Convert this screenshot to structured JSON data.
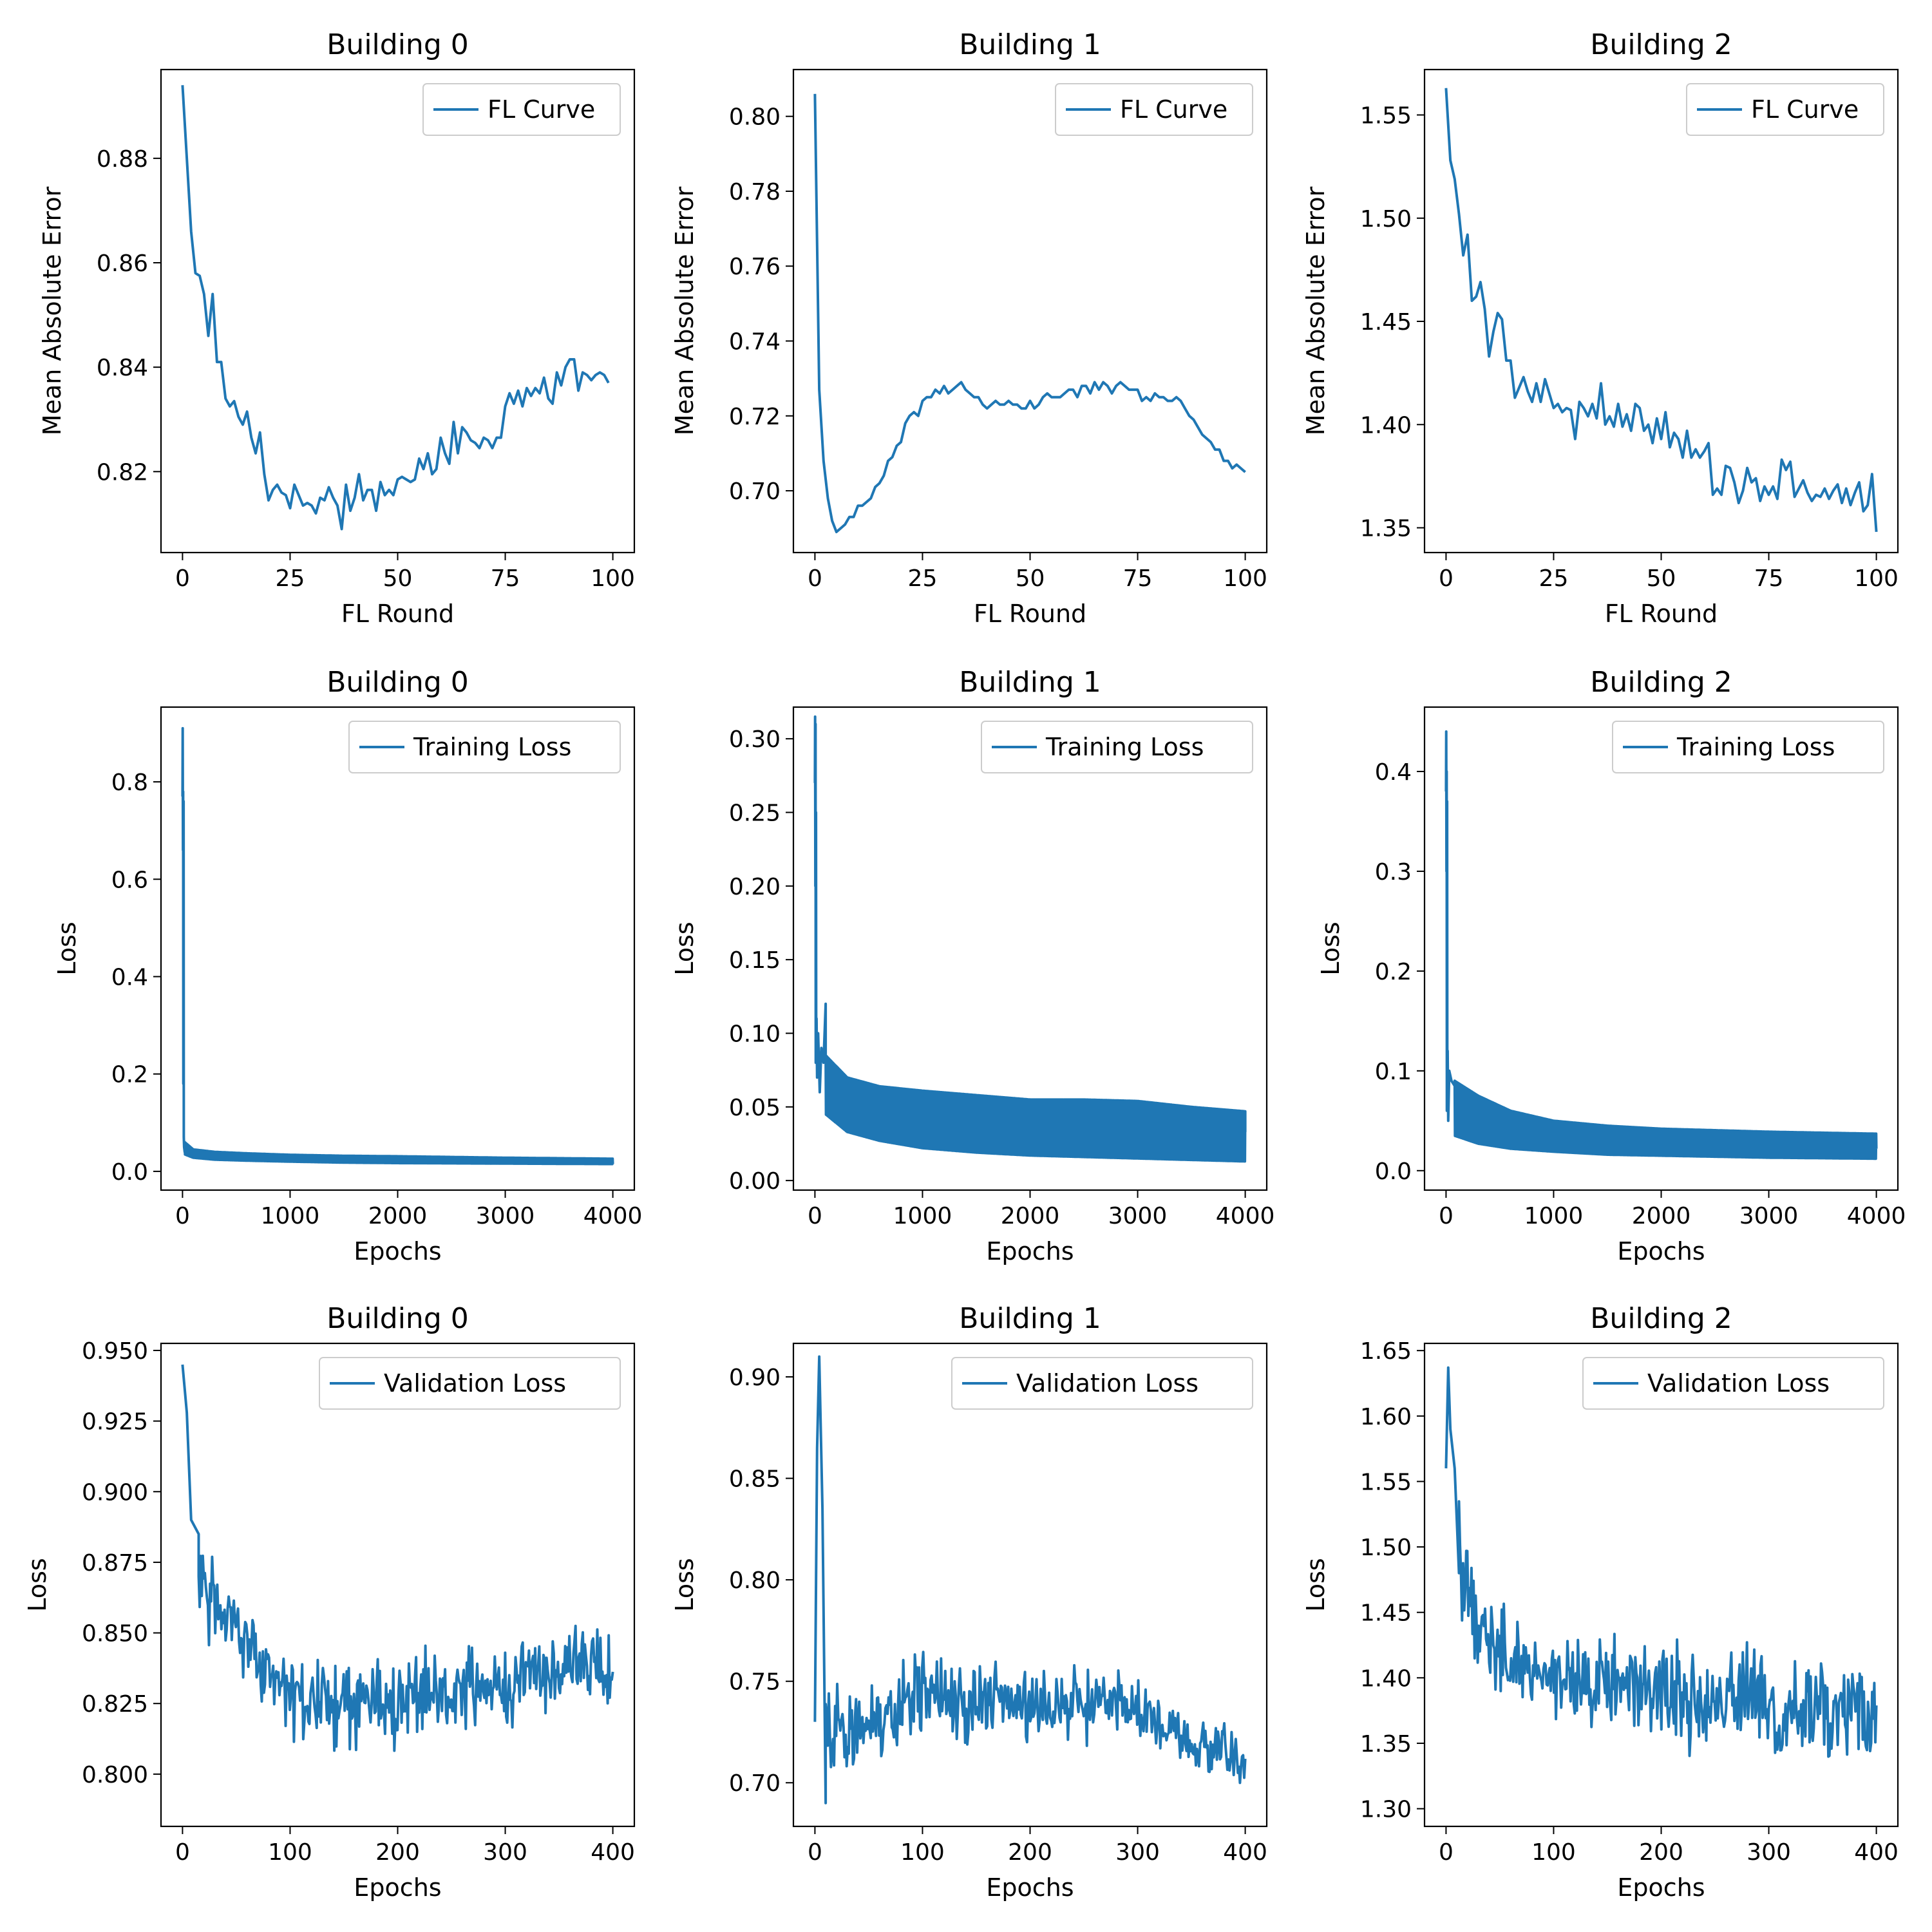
{
  "figure_title": "",
  "chart_data": [
    {
      "type": "line",
      "title": "Building 0",
      "xlabel": "FL Round",
      "ylabel": "Mean Absolute Error",
      "xlim": [
        -5,
        105
      ],
      "ylim": [
        0.8045,
        0.897
      ],
      "xticks": [
        0,
        25,
        50,
        75,
        100
      ],
      "yticks": [
        0.82,
        0.84,
        0.86,
        0.88
      ],
      "ytick_labels": [
        "0.82",
        "0.84",
        "0.86",
        "0.88"
      ],
      "legend": "top-right",
      "series": [
        {
          "name": "FL Curve",
          "color": "#1f77b4",
          "kind": "explicit",
          "x_start": 0,
          "x_step": 1,
          "values": [
            0.894,
            0.88,
            0.866,
            0.858,
            0.8575,
            0.854,
            0.846,
            0.854,
            0.841,
            0.841,
            0.834,
            0.8325,
            0.8335,
            0.8305,
            0.829,
            0.8315,
            0.8265,
            0.8235,
            0.8275,
            0.8195,
            0.8145,
            0.8165,
            0.8175,
            0.816,
            0.8155,
            0.813,
            0.8175,
            0.8155,
            0.8135,
            0.814,
            0.8135,
            0.812,
            0.815,
            0.8145,
            0.817,
            0.815,
            0.8135,
            0.809,
            0.8175,
            0.8125,
            0.815,
            0.8195,
            0.8145,
            0.8165,
            0.8165,
            0.8125,
            0.818,
            0.8155,
            0.8165,
            0.8155,
            0.8185,
            0.819,
            0.8185,
            0.818,
            0.8185,
            0.8225,
            0.8205,
            0.8235,
            0.8195,
            0.8205,
            0.8265,
            0.8235,
            0.8215,
            0.8295,
            0.8235,
            0.8285,
            0.8275,
            0.826,
            0.8255,
            0.8245,
            0.8265,
            0.826,
            0.8245,
            0.8265,
            0.8265,
            0.8325,
            0.835,
            0.833,
            0.8355,
            0.8325,
            0.836,
            0.8345,
            0.836,
            0.835,
            0.838,
            0.834,
            0.833,
            0.839,
            0.8365,
            0.84,
            0.8415,
            0.8415,
            0.8355,
            0.839,
            0.8385,
            0.8375,
            0.8385,
            0.839,
            0.8385,
            0.837
          ]
        }
      ]
    },
    {
      "type": "line",
      "title": "Building 1",
      "xlabel": "FL Round",
      "ylabel": "Mean Absolute Error",
      "xlim": [
        -5,
        105
      ],
      "ylim": [
        0.6835,
        0.8125
      ],
      "xticks": [
        0,
        25,
        50,
        75,
        100
      ],
      "yticks": [
        0.7,
        0.72,
        0.74,
        0.76,
        0.78,
        0.8
      ],
      "ytick_labels": [
        "0.70",
        "0.72",
        "0.74",
        "0.76",
        "0.78",
        "0.80"
      ],
      "legend": "top-right",
      "series": [
        {
          "name": "FL Curve",
          "color": "#1f77b4",
          "kind": "explicit",
          "x_start": 0,
          "x_step": 1,
          "values": [
            0.806,
            0.727,
            0.708,
            0.698,
            0.692,
            0.689,
            0.69,
            0.691,
            0.693,
            0.693,
            0.696,
            0.696,
            0.697,
            0.698,
            0.701,
            0.702,
            0.704,
            0.708,
            0.709,
            0.712,
            0.713,
            0.718,
            0.72,
            0.721,
            0.72,
            0.724,
            0.725,
            0.725,
            0.727,
            0.726,
            0.728,
            0.726,
            0.727,
            0.728,
            0.729,
            0.727,
            0.726,
            0.725,
            0.725,
            0.723,
            0.722,
            0.723,
            0.724,
            0.723,
            0.723,
            0.724,
            0.723,
            0.723,
            0.722,
            0.722,
            0.724,
            0.722,
            0.723,
            0.725,
            0.726,
            0.725,
            0.725,
            0.725,
            0.726,
            0.727,
            0.727,
            0.725,
            0.728,
            0.728,
            0.726,
            0.729,
            0.727,
            0.729,
            0.728,
            0.726,
            0.728,
            0.729,
            0.728,
            0.727,
            0.727,
            0.727,
            0.724,
            0.725,
            0.724,
            0.726,
            0.725,
            0.725,
            0.724,
            0.724,
            0.725,
            0.724,
            0.722,
            0.72,
            0.719,
            0.717,
            0.715,
            0.714,
            0.713,
            0.711,
            0.711,
            0.708,
            0.708,
            0.706,
            0.707,
            0.706,
            0.705
          ]
        }
      ]
    },
    {
      "type": "line",
      "title": "Building 2",
      "xlabel": "FL Round",
      "ylabel": "Mean Absolute Error",
      "xlim": [
        -5,
        105
      ],
      "ylim": [
        1.338,
        1.572
      ],
      "xticks": [
        0,
        25,
        50,
        75,
        100
      ],
      "yticks": [
        1.35,
        1.4,
        1.45,
        1.5,
        1.55
      ],
      "ytick_labels": [
        "1.35",
        "1.40",
        "1.45",
        "1.50",
        "1.55"
      ],
      "legend": "top-right",
      "series": [
        {
          "name": "FL Curve",
          "color": "#1f77b4",
          "kind": "explicit",
          "x_start": 0,
          "x_step": 1,
          "values": [
            1.563,
            1.528,
            1.519,
            1.502,
            1.482,
            1.492,
            1.46,
            1.462,
            1.469,
            1.456,
            1.433,
            1.445,
            1.454,
            1.451,
            1.431,
            1.431,
            1.413,
            1.418,
            1.423,
            1.416,
            1.411,
            1.42,
            1.411,
            1.422,
            1.415,
            1.408,
            1.41,
            1.406,
            1.408,
            1.407,
            1.393,
            1.411,
            1.408,
            1.404,
            1.41,
            1.403,
            1.42,
            1.4,
            1.404,
            1.399,
            1.41,
            1.399,
            1.405,
            1.397,
            1.41,
            1.408,
            1.397,
            1.4,
            1.391,
            1.403,
            1.393,
            1.406,
            1.389,
            1.396,
            1.393,
            1.384,
            1.397,
            1.384,
            1.388,
            1.384,
            1.387,
            1.391,
            1.366,
            1.369,
            1.366,
            1.38,
            1.379,
            1.372,
            1.362,
            1.368,
            1.379,
            1.372,
            1.374,
            1.363,
            1.37,
            1.366,
            1.37,
            1.364,
            1.383,
            1.378,
            1.382,
            1.365,
            1.369,
            1.373,
            1.367,
            1.363,
            1.366,
            1.365,
            1.369,
            1.364,
            1.368,
            1.371,
            1.362,
            1.369,
            1.361,
            1.367,
            1.372,
            1.358,
            1.361,
            1.376,
            1.348
          ]
        }
      ]
    },
    {
      "type": "line",
      "title": "Building 0",
      "xlabel": "Epochs",
      "ylabel": "Loss",
      "xlim": [
        -200,
        4200
      ],
      "ylim": [
        -0.0385,
        0.9535
      ],
      "xticks": [
        0,
        1000,
        2000,
        3000,
        4000
      ],
      "yticks": [
        0,
        0.2,
        0.4,
        0.6,
        0.8
      ],
      "ytick_labels": [
        "0.0",
        "0.2",
        "0.4",
        "0.6",
        "0.8"
      ],
      "legend": "top-right",
      "series": [
        {
          "name": "Training Loss",
          "color": "#1f77b4",
          "kind": "oscillating",
          "x_end": 4000,
          "spike_x": [
            0,
            2,
            4,
            6,
            8,
            10,
            12,
            15,
            20
          ],
          "spike_y": [
            0.77,
            0.91,
            0.66,
            0.78,
            0.18,
            0.76,
            0.07,
            0.05,
            0.04
          ],
          "env_x": [
            20,
            100,
            300,
            600,
            1000,
            1500,
            2000,
            3000,
            4000
          ],
          "env_upper": [
            0.06,
            0.045,
            0.04,
            0.037,
            0.034,
            0.032,
            0.031,
            0.028,
            0.026
          ],
          "env_lower": [
            0.035,
            0.028,
            0.024,
            0.022,
            0.02,
            0.018,
            0.017,
            0.016,
            0.015
          ],
          "end_value": 0.015
        }
      ]
    },
    {
      "type": "line",
      "title": "Building 1",
      "xlabel": "Epochs",
      "ylabel": "Loss",
      "xlim": [
        -200,
        4200
      ],
      "ylim": [
        -0.0065,
        0.3215
      ],
      "xticks": [
        0,
        1000,
        2000,
        3000,
        4000
      ],
      "yticks": [
        0,
        0.05,
        0.1,
        0.15,
        0.2,
        0.25,
        0.3
      ],
      "ytick_labels": [
        "0.00",
        "0.05",
        "0.10",
        "0.15",
        "0.20",
        "0.25",
        "0.30"
      ],
      "legend": "top-right",
      "series": [
        {
          "name": "Training Loss",
          "color": "#1f77b4",
          "kind": "oscillating",
          "x_end": 4000,
          "spike_x": [
            0,
            2,
            4,
            6,
            8,
            10,
            12,
            15,
            20,
            30,
            45,
            60,
            80,
            100
          ],
          "spike_y": [
            0.27,
            0.315,
            0.2,
            0.31,
            0.08,
            0.25,
            0.09,
            0.11,
            0.07,
            0.1,
            0.06,
            0.09,
            0.08,
            0.12
          ],
          "env_x": [
            100,
            300,
            600,
            1000,
            1500,
            2000,
            2500,
            3000,
            3500,
            4000
          ],
          "env_upper": [
            0.085,
            0.07,
            0.064,
            0.061,
            0.058,
            0.055,
            0.055,
            0.054,
            0.05,
            0.047
          ],
          "env_lower": [
            0.045,
            0.033,
            0.027,
            0.022,
            0.019,
            0.017,
            0.016,
            0.015,
            0.014,
            0.013
          ],
          "end_value": 0.033
        }
      ]
    },
    {
      "type": "line",
      "title": "Building 2",
      "xlabel": "Epochs",
      "ylabel": "Loss",
      "xlim": [
        -200,
        4200
      ],
      "ylim": [
        -0.0195,
        0.4645
      ],
      "xticks": [
        0,
        1000,
        2000,
        3000,
        4000
      ],
      "yticks": [
        0,
        0.1,
        0.2,
        0.3,
        0.4
      ],
      "ytick_labels": [
        "0.0",
        "0.1",
        "0.2",
        "0.3",
        "0.4"
      ],
      "legend": "top-right",
      "series": [
        {
          "name": "Training Loss",
          "color": "#1f77b4",
          "kind": "oscillating",
          "x_end": 4000,
          "spike_x": [
            0,
            2,
            4,
            6,
            8,
            10,
            12,
            15,
            20,
            30,
            50,
            80
          ],
          "spike_y": [
            0.38,
            0.44,
            0.3,
            0.4,
            0.06,
            0.37,
            0.08,
            0.12,
            0.05,
            0.1,
            0.09,
            0.085
          ],
          "env_x": [
            80,
            300,
            600,
            1000,
            1500,
            2000,
            3000,
            4000
          ],
          "env_upper": [
            0.09,
            0.075,
            0.06,
            0.05,
            0.045,
            0.042,
            0.039,
            0.037
          ],
          "env_lower": [
            0.035,
            0.027,
            0.022,
            0.019,
            0.016,
            0.015,
            0.013,
            0.012
          ],
          "end_value": 0.022
        }
      ]
    },
    {
      "type": "line",
      "title": "Building 0",
      "xlabel": "Epochs",
      "ylabel": "Loss",
      "xlim": [
        -20,
        420
      ],
      "ylim": [
        0.7815,
        0.9525
      ],
      "xticks": [
        0,
        100,
        200,
        300,
        400
      ],
      "yticks": [
        0.8,
        0.825,
        0.85,
        0.875,
        0.9,
        0.925,
        0.95
      ],
      "ytick_labels": [
        "0.800",
        "0.825",
        "0.850",
        "0.875",
        "0.900",
        "0.925",
        "0.950"
      ],
      "legend": "top-right",
      "series": [
        {
          "name": "Validation Loss",
          "color": "#1f77b4",
          "kind": "noisy",
          "x_end": 400,
          "n_points": 400,
          "center_x": [
            0,
            10,
            30,
            60,
            100,
            150,
            200,
            250,
            300,
            350,
            400
          ],
          "center_y": [
            0.91,
            0.875,
            0.86,
            0.845,
            0.83,
            0.825,
            0.825,
            0.828,
            0.832,
            0.838,
            0.84
          ],
          "amp_x": [
            0,
            50,
            100,
            400
          ],
          "amp_y": [
            0.025,
            0.018,
            0.022,
            0.022
          ],
          "spike_x": [
            0,
            4,
            8,
            15
          ],
          "spike_y": [
            0.945,
            0.928,
            0.89,
            0.885
          ]
        }
      ]
    },
    {
      "type": "line",
      "title": "Building 1",
      "xlabel": "Epochs",
      "ylabel": "Loss",
      "xlim": [
        -20,
        420
      ],
      "ylim": [
        0.6785,
        0.9165
      ],
      "xticks": [
        0,
        100,
        200,
        300,
        400
      ],
      "yticks": [
        0.7,
        0.75,
        0.8,
        0.85,
        0.9
      ],
      "ytick_labels": [
        "0.70",
        "0.75",
        "0.80",
        "0.85",
        "0.90"
      ],
      "legend": "top-right",
      "series": [
        {
          "name": "Validation Loss",
          "color": "#1f77b4",
          "kind": "noisy",
          "x_end": 400,
          "n_points": 400,
          "center_x": [
            0,
            20,
            50,
            100,
            150,
            200,
            250,
            300,
            350,
            400
          ],
          "center_y": [
            0.73,
            0.725,
            0.73,
            0.745,
            0.74,
            0.737,
            0.74,
            0.735,
            0.72,
            0.712
          ],
          "amp_x": [
            0,
            50,
            100,
            300,
            400
          ],
          "amp_y": [
            0.035,
            0.032,
            0.03,
            0.022,
            0.015
          ],
          "spike_x": [
            0,
            2,
            4,
            7,
            10
          ],
          "spike_y": [
            0.73,
            0.865,
            0.91,
            0.835,
            0.69
          ]
        }
      ]
    },
    {
      "type": "line",
      "title": "Building 2",
      "xlabel": "Epochs",
      "ylabel": "Loss",
      "xlim": [
        -20,
        420
      ],
      "ylim": [
        1.2865,
        1.6555
      ],
      "xticks": [
        0,
        100,
        200,
        300,
        400
      ],
      "yticks": [
        1.3,
        1.35,
        1.4,
        1.45,
        1.5,
        1.55,
        1.6,
        1.65
      ],
      "ytick_labels": [
        "1.30",
        "1.35",
        "1.40",
        "1.45",
        "1.50",
        "1.55",
        "1.60",
        "1.65"
      ],
      "legend": "top-right",
      "series": [
        {
          "name": "Validation Loss",
          "color": "#1f77b4",
          "kind": "noisy",
          "x_end": 400,
          "n_points": 400,
          "center_x": [
            0,
            10,
            30,
            60,
            100,
            150,
            200,
            250,
            300,
            350,
            400
          ],
          "center_y": [
            1.55,
            1.5,
            1.44,
            1.41,
            1.4,
            1.395,
            1.39,
            1.385,
            1.38,
            1.375,
            1.37
          ],
          "amp_x": [
            0,
            50,
            100,
            400
          ],
          "amp_y": [
            0.06,
            0.05,
            0.045,
            0.06
          ],
          "spike_x": [
            0,
            2,
            4,
            8,
            12
          ],
          "spike_y": [
            1.56,
            1.637,
            1.59,
            1.56,
            1.48
          ]
        }
      ]
    }
  ]
}
